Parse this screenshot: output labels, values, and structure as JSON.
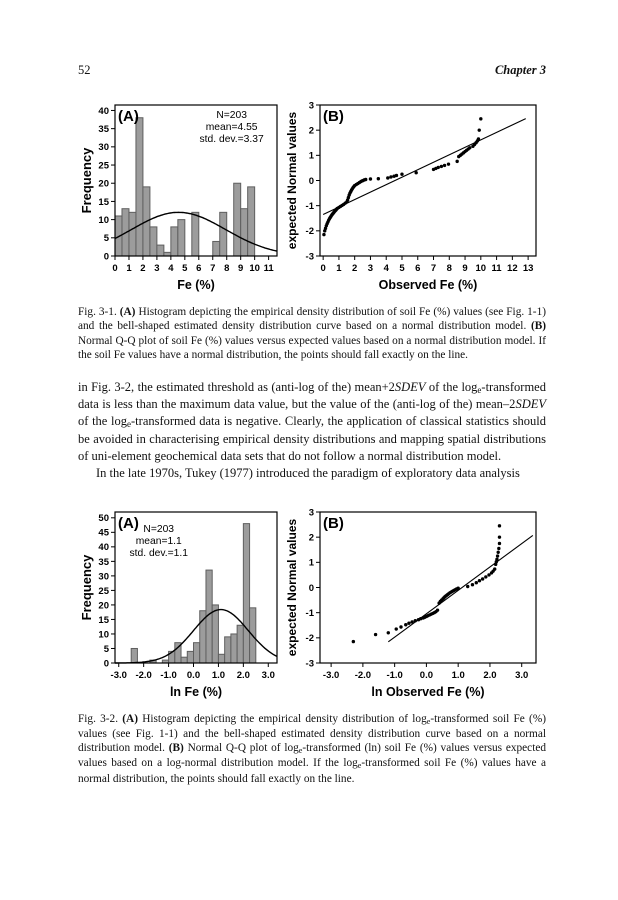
{
  "page": {
    "number": "52",
    "running_head": "Chapter 3"
  },
  "figures": [
    {
      "name": "Fig. 3-1",
      "caption_runs": [
        {
          "t": "Fig. 3-1. "
        },
        {
          "t": "(A)",
          "b": true
        },
        {
          "t": " Histogram depicting the empirical density distribution of soil Fe (%) values (see Fig. 1-1) and the bell-shaped estimated density distribution curve based on a normal distribution model. "
        },
        {
          "t": "(B)",
          "b": true
        },
        {
          "t": " Normal Q-Q plot of soil Fe (%) values versus expected values based on a normal distribution model. If the soil Fe values have a normal distribution, the points should fall exactly on the line."
        }
      ]
    },
    {
      "name": "Fig. 3-2",
      "caption_runs": [
        {
          "t": "Fig. 3-2. "
        },
        {
          "t": "(A)",
          "b": true
        },
        {
          "t": " Histogram depicting the empirical density distribution of log"
        },
        {
          "t": "e",
          "sub": true
        },
        {
          "t": "-transformed soil Fe (%) values (see Fig. 1-1) and the bell-shaped estimated density distribution curve based on a normal distribution model. "
        },
        {
          "t": "(B)",
          "b": true
        },
        {
          "t": " Normal Q-Q plot of log"
        },
        {
          "t": "e",
          "sub": true
        },
        {
          "t": "-transformed (ln) soil Fe (%) values versus expected values based on a log-normal distribution model. If the log"
        },
        {
          "t": "e",
          "sub": true
        },
        {
          "t": "-transformed soil Fe (%) values have a normal distribution, the points should fall exactly on the line."
        }
      ]
    }
  ],
  "body": {
    "paragraphs": [
      {
        "indent": false,
        "runs": [
          {
            "t": "in Fig. 3-2, the estimated threshold as (anti-log of the) mean+2"
          },
          {
            "t": "SDEV",
            "i": true
          },
          {
            "t": " of the log"
          },
          {
            "t": "e",
            "sub": true
          },
          {
            "t": "-transformed data is less than the maximum data value, but the value of the (anti-log of the) mean–2"
          },
          {
            "t": "SDEV",
            "i": true
          },
          {
            "t": " of the log"
          },
          {
            "t": "e",
            "sub": true
          },
          {
            "t": "-transformed data is negative. Clearly, the application of classical statistics should be avoided in characterising empirical density distributions and mapping spatial distributions of uni-element geochemical data sets that do not follow a normal distribution model."
          }
        ]
      },
      {
        "indent": true,
        "runs": [
          {
            "t": "In the late 1970s, Tukey (1977) introduced the paradigm of exploratory data analysis"
          }
        ]
      }
    ]
  },
  "colors": {
    "bar_fill": "#9c9c9c",
    "bar_stroke": "#5f5f5f",
    "ink": "#000000",
    "paper": "#ffffff"
  },
  "chart_data": [
    {
      "id": "fig1-histogram",
      "type": "bar",
      "panel_label": "(A)",
      "stats": [
        "N=203",
        "mean=4.55",
        "std. dev.=3.37"
      ],
      "stats_anchor": "upper-right",
      "xlabel": "Fe (%)",
      "ylabel": "Frequency",
      "xlim": [
        0,
        11.6
      ],
      "ylim": [
        0,
        41.5
      ],
      "xticks": [
        0,
        1,
        2,
        3,
        4,
        5,
        6,
        7,
        8,
        9,
        10,
        11
      ],
      "xtick_labels": [
        "0",
        "1",
        "2",
        "3",
        "4",
        "5",
        "6",
        "7",
        "8",
        "9",
        "10",
        "11"
      ],
      "yticks": [
        0,
        5,
        10,
        15,
        20,
        25,
        30,
        35,
        40
      ],
      "bin_width": 0.5,
      "bars": [
        [
          0,
          11
        ],
        [
          0.5,
          13
        ],
        [
          1,
          12
        ],
        [
          1.5,
          38
        ],
        [
          2,
          19
        ],
        [
          2.5,
          8
        ],
        [
          3,
          3
        ],
        [
          3.5,
          1
        ],
        [
          4,
          8
        ],
        [
          4.5,
          10
        ],
        [
          5.5,
          12
        ],
        [
          7,
          4
        ],
        [
          7.5,
          12
        ],
        [
          8.5,
          20
        ],
        [
          9,
          13
        ],
        [
          9.5,
          19
        ]
      ],
      "curve": {
        "mean": 4.55,
        "sd": 3.37,
        "peak": 12.0
      }
    },
    {
      "id": "fig1-qq",
      "type": "scatter",
      "panel_label": "(B)",
      "xlabel": "Observed Fe (%)",
      "ylabel": "expected Normal values",
      "xlim": [
        -0.2,
        13.5
      ],
      "ylim": [
        -3,
        3
      ],
      "xticks": [
        0,
        1,
        2,
        3,
        4,
        5,
        6,
        7,
        8,
        9,
        10,
        11,
        12,
        13
      ],
      "xtick_labels": [
        "0",
        "1",
        "2",
        "3",
        "4",
        "5",
        "6",
        "7",
        "8",
        "9",
        "10",
        "11",
        "12",
        "13"
      ],
      "yticks": [
        -3,
        -2,
        -1,
        0,
        1,
        2,
        3
      ],
      "ytick_labels": [
        "-3",
        "-2",
        "-1",
        "0",
        "1",
        "2",
        "3"
      ],
      "line": [
        0,
        -1.35,
        12.85,
        2.46
      ],
      "points": [
        [
          0.05,
          -2.15
        ],
        [
          0.1,
          -2.0
        ],
        [
          0.15,
          -1.9
        ],
        [
          0.2,
          -1.8
        ],
        [
          0.25,
          -1.72
        ],
        [
          0.3,
          -1.65
        ],
        [
          0.35,
          -1.58
        ],
        [
          0.4,
          -1.52
        ],
        [
          0.45,
          -1.47
        ],
        [
          0.5,
          -1.42
        ],
        [
          0.55,
          -1.37
        ],
        [
          0.6,
          -1.33
        ],
        [
          0.65,
          -1.29
        ],
        [
          0.7,
          -1.25
        ],
        [
          0.75,
          -1.21
        ],
        [
          0.8,
          -1.18
        ],
        [
          0.85,
          -1.14
        ],
        [
          0.9,
          -1.11
        ],
        [
          1.0,
          -1.07
        ],
        [
          1.1,
          -1.03
        ],
        [
          1.2,
          -0.99
        ],
        [
          1.3,
          -0.95
        ],
        [
          1.4,
          -0.9
        ],
        [
          1.5,
          -0.85
        ],
        [
          1.55,
          -0.78
        ],
        [
          1.6,
          -0.68
        ],
        [
          1.65,
          -0.58
        ],
        [
          1.7,
          -0.5
        ],
        [
          1.75,
          -0.44
        ],
        [
          1.8,
          -0.38
        ],
        [
          1.85,
          -0.33
        ],
        [
          1.9,
          -0.28
        ],
        [
          1.95,
          -0.24
        ],
        [
          2.0,
          -0.2
        ],
        [
          2.1,
          -0.16
        ],
        [
          2.2,
          -0.12
        ],
        [
          2.3,
          -0.08
        ],
        [
          2.4,
          -0.04
        ],
        [
          2.5,
          -0.01
        ],
        [
          2.6,
          0.02
        ],
        [
          2.7,
          0.04
        ],
        [
          3.0,
          0.06
        ],
        [
          3.5,
          0.07
        ],
        [
          4.1,
          0.1
        ],
        [
          4.3,
          0.14
        ],
        [
          4.5,
          0.17
        ],
        [
          4.65,
          0.2
        ],
        [
          5.0,
          0.25
        ],
        [
          5.9,
          0.31
        ],
        [
          7.0,
          0.44
        ],
        [
          7.15,
          0.48
        ],
        [
          7.3,
          0.52
        ],
        [
          7.5,
          0.56
        ],
        [
          7.7,
          0.6
        ],
        [
          7.95,
          0.65
        ],
        [
          8.5,
          0.76
        ],
        [
          8.6,
          0.95
        ],
        [
          8.7,
          1.0
        ],
        [
          8.8,
          1.05
        ],
        [
          8.9,
          1.1
        ],
        [
          9.0,
          1.15
        ],
        [
          9.1,
          1.2
        ],
        [
          9.2,
          1.25
        ],
        [
          9.3,
          1.3
        ],
        [
          9.5,
          1.36
        ],
        [
          9.6,
          1.43
        ],
        [
          9.7,
          1.5
        ],
        [
          9.78,
          1.57
        ],
        [
          9.85,
          1.65
        ],
        [
          9.9,
          2.0
        ],
        [
          10.0,
          2.45
        ]
      ]
    },
    {
      "id": "fig2-histogram",
      "type": "bar",
      "panel_label": "(A)",
      "stats": [
        "N=203",
        "mean=1.1",
        "std. dev.=1.1"
      ],
      "stats_anchor": "upper-left",
      "xlabel": "ln Fe (%)",
      "ylabel": "Frequency",
      "xlim": [
        -3.15,
        3.35
      ],
      "ylim": [
        0,
        52
      ],
      "xticks": [
        -3,
        -2,
        -1,
        0,
        1,
        2,
        3
      ],
      "xtick_labels": [
        "-3.0",
        "-2.0",
        "-1.0",
        "0.0",
        "1.0",
        "2.0",
        "3.0"
      ],
      "yticks": [
        0,
        5,
        10,
        15,
        20,
        25,
        30,
        35,
        40,
        45,
        50
      ],
      "bin_width": 0.25,
      "bars": [
        [
          -2.5,
          5
        ],
        [
          -1.75,
          1
        ],
        [
          -1.25,
          1
        ],
        [
          -1.0,
          4
        ],
        [
          -0.75,
          7
        ],
        [
          -0.5,
          2
        ],
        [
          -0.25,
          4
        ],
        [
          0,
          7
        ],
        [
          0.25,
          18
        ],
        [
          0.5,
          32
        ],
        [
          0.75,
          20
        ],
        [
          1.0,
          3
        ],
        [
          1.25,
          9
        ],
        [
          1.5,
          10
        ],
        [
          1.75,
          13
        ],
        [
          2.0,
          48
        ],
        [
          2.25,
          19
        ]
      ],
      "curve": {
        "mean": 1.1,
        "sd": 1.1,
        "peak": 18.4
      }
    },
    {
      "id": "fig2-qq",
      "type": "scatter",
      "panel_label": "(B)",
      "xlabel": "ln Observed Fe (%)",
      "ylabel": "expected Normal values",
      "xlim": [
        -3.35,
        3.45
      ],
      "ylim": [
        -3,
        3
      ],
      "xticks": [
        -3,
        -2,
        -1,
        0,
        1,
        2,
        3
      ],
      "xtick_labels": [
        "-3.0",
        "-2.0",
        "-1.0",
        "0.0",
        "1.0",
        "2.0",
        "3.0"
      ],
      "yticks": [
        -3,
        -2,
        -1,
        0,
        1,
        2,
        3
      ],
      "ytick_labels": [
        "-3",
        "-2",
        "-1",
        "0",
        "1",
        "2",
        "3"
      ],
      "line": [
        -1.2,
        -2.16,
        3.35,
        2.07
      ],
      "points": [
        [
          -2.3,
          -2.15
        ],
        [
          -1.6,
          -1.87
        ],
        [
          -1.2,
          -1.8
        ],
        [
          -0.95,
          -1.65
        ],
        [
          -0.8,
          -1.57
        ],
        [
          -0.65,
          -1.48
        ],
        [
          -0.55,
          -1.42
        ],
        [
          -0.45,
          -1.37
        ],
        [
          -0.35,
          -1.32
        ],
        [
          -0.25,
          -1.28
        ],
        [
          -0.18,
          -1.24
        ],
        [
          -0.1,
          -1.21
        ],
        [
          -0.05,
          -1.18
        ],
        [
          0.0,
          -1.15
        ],
        [
          0.05,
          -1.12
        ],
        [
          0.1,
          -1.09
        ],
        [
          0.15,
          -1.06
        ],
        [
          0.2,
          -1.03
        ],
        [
          0.25,
          -1.0
        ],
        [
          0.3,
          -0.96
        ],
        [
          0.35,
          -0.9
        ],
        [
          0.4,
          -0.62
        ],
        [
          0.44,
          -0.55
        ],
        [
          0.48,
          -0.5
        ],
        [
          0.52,
          -0.45
        ],
        [
          0.55,
          -0.41
        ],
        [
          0.58,
          -0.37
        ],
        [
          0.61,
          -0.34
        ],
        [
          0.64,
          -0.31
        ],
        [
          0.67,
          -0.28
        ],
        [
          0.7,
          -0.25
        ],
        [
          0.74,
          -0.21
        ],
        [
          0.78,
          -0.18
        ],
        [
          0.82,
          -0.15
        ],
        [
          0.86,
          -0.12
        ],
        [
          0.9,
          -0.09
        ],
        [
          0.95,
          -0.06
        ],
        [
          1.0,
          -0.03
        ],
        [
          1.3,
          0.04
        ],
        [
          1.45,
          0.11
        ],
        [
          1.57,
          0.19
        ],
        [
          1.67,
          0.27
        ],
        [
          1.77,
          0.34
        ],
        [
          1.87,
          0.42
        ],
        [
          1.97,
          0.5
        ],
        [
          2.05,
          0.58
        ],
        [
          2.1,
          0.65
        ],
        [
          2.15,
          0.73
        ],
        [
          2.18,
          0.92
        ],
        [
          2.2,
          1.02
        ],
        [
          2.22,
          1.12
        ],
        [
          2.24,
          1.25
        ],
        [
          2.26,
          1.4
        ],
        [
          2.28,
          1.55
        ],
        [
          2.3,
          1.75
        ],
        [
          2.3,
          2.0
        ],
        [
          2.3,
          2.45
        ]
      ]
    }
  ]
}
